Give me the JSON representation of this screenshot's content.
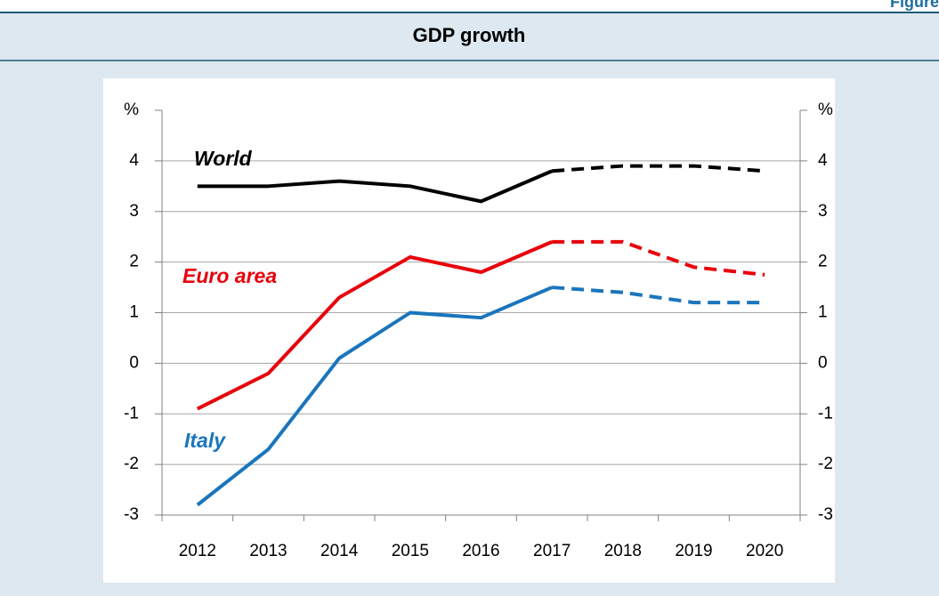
{
  "header": {
    "figure_label": "Figure"
  },
  "chart_data": {
    "type": "line",
    "title": "GDP growth",
    "categories": [
      "2012",
      "2013",
      "2014",
      "2015",
      "2016",
      "2017",
      "2018",
      "2019",
      "2020"
    ],
    "series": [
      {
        "name": "World",
        "color": "#000000",
        "values": [
          3.5,
          3.5,
          3.6,
          3.5,
          3.2,
          3.8,
          3.9,
          3.9,
          3.8
        ]
      },
      {
        "name": "Euro area",
        "color": "#e8000b",
        "values": [
          -0.9,
          -0.2,
          1.3,
          2.1,
          1.8,
          2.4,
          2.4,
          1.9,
          1.75
        ]
      },
      {
        "name": "Italy",
        "color": "#1a75bc",
        "values": [
          -2.8,
          -1.7,
          0.1,
          1.0,
          0.9,
          1.5,
          1.4,
          1.2,
          1.2
        ]
      }
    ],
    "dashed_from": "2017",
    "ylim": [
      -3,
      5
    ],
    "yticks": [
      -3,
      -2,
      -1,
      0,
      1,
      2,
      3,
      4,
      {
        "value": 5,
        "label": "%"
      }
    ],
    "y2lim": [
      -3,
      5
    ],
    "y2ticks": [
      -3,
      -2,
      -1,
      0,
      1,
      2,
      3,
      4,
      {
        "value": 5,
        "label": "%"
      }
    ],
    "grid": true
  }
}
